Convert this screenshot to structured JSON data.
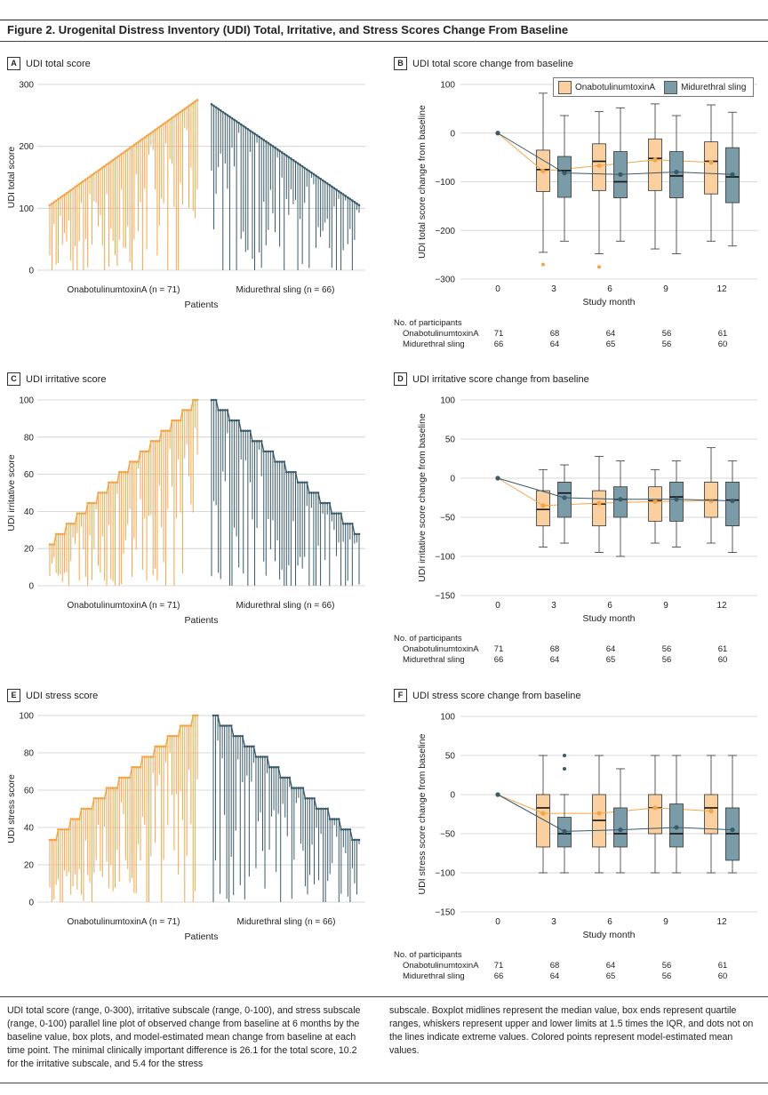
{
  "figure": {
    "title": "Figure 2. Urogenital Distress Inventory (UDI) Total, Irritative, and Stress Scores Change From Baseline",
    "caption_left": "UDI total score (range, 0-300), irritative subscale (range, 0-100), and stress subscale (range, 0-100) parallel line plot of observed change from baseline at 6 months by the baseline value, box plots, and model-estimated mean change from baseline at each time point. The minimal clinically important difference is 26.1 for the total score, 10.2 for the irritative subscale, and 5.4 for the stress",
    "caption_right": "subscale. Boxplot midlines represent the median value, box ends represent quartile ranges, whiskers represent upper and lower limits at 1.5 times the IQR, and dots not on the lines indicate extreme values. Colored points represent model-estimated mean values."
  },
  "colors": {
    "onabot": "#F2A548",
    "onabot_fill": "#FAD0A0",
    "sling": "#3A5A6A",
    "sling_fill": "#7A9CA8",
    "grid": "#CCCCCC"
  },
  "legend": {
    "onabot": "OnabotulinumtoxinA",
    "sling": "Midurethral sling"
  },
  "participants": {
    "header": "No. of participants",
    "rows": [
      {
        "label": "OnabotulinumtoxinA",
        "values": [
          "71",
          "68",
          "64",
          "56",
          "61"
        ]
      },
      {
        "label": "Midurethral sling",
        "values": [
          "66",
          "64",
          "65",
          "56",
          "60"
        ]
      }
    ]
  },
  "chart_data": [
    {
      "panel": "A",
      "type": "parallel-line",
      "title": "UDI total score",
      "ylabel": "UDI total score",
      "xlabel": "Patients",
      "group_labels": [
        "OnabotulinumtoxinA (n = 71)",
        "Midurethral sling (n = 66)"
      ],
      "ylim": [
        0,
        300
      ],
      "yticks": [
        0,
        100,
        200,
        300
      ],
      "series": [
        {
          "name": "OnabotulinumtoxinA",
          "count": 71,
          "baseline_range": [
            105,
            275
          ],
          "month6_range": [
            0,
            240
          ]
        },
        {
          "name": "Midurethral sling",
          "count": 66,
          "baseline_range": [
            268,
            105
          ],
          "month6_range": [
            0,
            230
          ]
        }
      ]
    },
    {
      "panel": "B",
      "type": "box",
      "title": "UDI total score change from baseline",
      "ylabel": "UDI total score change from baseline",
      "xlabel": "Study month",
      "categories": [
        "0",
        "3",
        "6",
        "9",
        "12"
      ],
      "ylim": [
        -300,
        100
      ],
      "yticks": [
        -300,
        -200,
        -100,
        0,
        100
      ],
      "series": [
        {
          "name": "OnabotulinumtoxinA",
          "boxes": [
            null,
            [
              -245,
              -120,
              -75,
              -35,
              82
            ],
            [
              -248,
              -118,
              -58,
              -22,
              44
            ],
            [
              -238,
              -118,
              -52,
              -12,
              60
            ],
            [
              -222,
              -125,
              -58,
              -18,
              58
            ]
          ],
          "outliers": [
            [],
            [
              -270
            ],
            [
              -275
            ],
            [],
            []
          ],
          "means": [
            0,
            -78,
            -67,
            -55,
            -60
          ]
        },
        {
          "name": "Midurethral sling",
          "boxes": [
            null,
            [
              -222,
              -132,
              -77,
              -48,
              36
            ],
            [
              -222,
              -133,
              -100,
              -38,
              52
            ],
            [
              -248,
              -133,
              -88,
              -38,
              36
            ],
            [
              -232,
              -143,
              -90,
              -30,
              43
            ]
          ],
          "outliers": [
            [],
            [],
            [],
            [],
            []
          ],
          "means": [
            0,
            -82,
            -85,
            -80,
            -85
          ]
        }
      ]
    },
    {
      "panel": "C",
      "type": "parallel-line",
      "title": "UDI irritative score",
      "ylabel": "UDI irritative score",
      "xlabel": "Patients",
      "group_labels": [
        "OnabotulinumtoxinA (n = 71)",
        "Midurethral sling (n = 66)"
      ],
      "ylim": [
        0,
        100
      ],
      "yticks": [
        0,
        20,
        40,
        60,
        80,
        100
      ],
      "series": [
        {
          "name": "OnabotulinumtoxinA",
          "count": 71,
          "baseline_range": [
            22,
            100
          ],
          "month6_range": [
            0,
            100
          ]
        },
        {
          "name": "Midurethral sling",
          "count": 66,
          "baseline_range": [
            100,
            28
          ],
          "month6_range": [
            0,
            95
          ]
        }
      ]
    },
    {
      "panel": "D",
      "type": "box",
      "title": "UDI irritative score change from baseline",
      "ylabel": "UDI irritative score change from baseline",
      "xlabel": "Study month",
      "categories": [
        "0",
        "3",
        "6",
        "9",
        "12"
      ],
      "ylim": [
        -150,
        100
      ],
      "yticks": [
        -150,
        -100,
        -50,
        0,
        50,
        100
      ],
      "series": [
        {
          "name": "OnabotulinumtoxinA",
          "boxes": [
            null,
            [
              -88,
              -61,
              -40,
              -16,
              11
            ],
            [
              -95,
              -61,
              -33,
              -16,
              28
            ],
            [
              -83,
              -55,
              -29,
              -11,
              11
            ],
            [
              -83,
              -50,
              -28,
              -5,
              39
            ]
          ],
          "outliers": [
            [],
            [],
            [],
            [],
            []
          ],
          "means": [
            0,
            -35,
            -32,
            -30,
            -29
          ]
        },
        {
          "name": "Midurethral sling",
          "boxes": [
            null,
            [
              -83,
              -50,
              -19,
              -5,
              17
            ],
            [
              -100,
              -50,
              -27,
              -11,
              22
            ],
            [
              -88,
              -55,
              -24,
              -5,
              22
            ],
            [
              -95,
              -61,
              -28,
              -5,
              22
            ]
          ],
          "outliers": [
            [],
            [],
            [],
            [],
            []
          ],
          "means": [
            0,
            -25,
            -27,
            -27,
            -29
          ]
        }
      ]
    },
    {
      "panel": "E",
      "type": "parallel-line",
      "title": "UDI stress score",
      "ylabel": "UDI stress score",
      "xlabel": "Patients",
      "group_labels": [
        "OnabotulinumtoxinA (n = 71)",
        "Midurethral sling (n = 66)"
      ],
      "ylim": [
        0,
        100
      ],
      "yticks": [
        0,
        20,
        40,
        60,
        80,
        100
      ],
      "series": [
        {
          "name": "OnabotulinumtoxinA",
          "count": 71,
          "baseline_range": [
            33,
            100
          ],
          "month6_range": [
            0,
            100
          ]
        },
        {
          "name": "Midurethral sling",
          "count": 66,
          "baseline_range": [
            100,
            33
          ],
          "month6_range": [
            0,
            100
          ]
        }
      ]
    },
    {
      "panel": "F",
      "type": "box",
      "title": "UDI stress score change from baseline",
      "ylabel": "UDI stress score change from baseline",
      "xlabel": "Study month",
      "categories": [
        "0",
        "3",
        "6",
        "9",
        "12"
      ],
      "ylim": [
        -150,
        100
      ],
      "yticks": [
        -150,
        -100,
        -50,
        0,
        50,
        100
      ],
      "series": [
        {
          "name": "OnabotulinumtoxinA",
          "boxes": [
            null,
            [
              -100,
              -67,
              -17,
              0,
              50
            ],
            [
              -100,
              -67,
              -33,
              0,
              50
            ],
            [
              -100,
              -50,
              -17,
              0,
              50
            ],
            [
              -100,
              -50,
              -17,
              0,
              50
            ]
          ],
          "outliers": [
            [],
            [],
            [],
            [],
            []
          ],
          "means": [
            0,
            -24,
            -24,
            -17,
            -21
          ]
        },
        {
          "name": "Midurethral sling",
          "boxes": [
            null,
            [
              -100,
              -67,
              -50,
              -29,
              0
            ],
            [
              -100,
              -67,
              -50,
              -17,
              33
            ],
            [
              -100,
              -67,
              -50,
              -12,
              50
            ],
            [
              -100,
              -84,
              -50,
              -17,
              50
            ]
          ],
          "outliers": [
            [],
            [
              33,
              50
            ],
            [],
            [],
            []
          ],
          "means": [
            0,
            -47,
            -45,
            -42,
            -45
          ]
        }
      ]
    }
  ]
}
